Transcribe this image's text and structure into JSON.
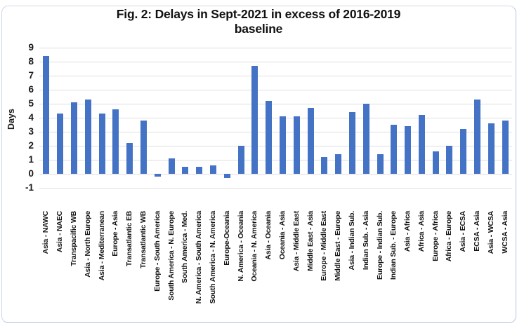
{
  "figure": {
    "title_line1": "Fig. 2: Delays in Sept-2021 in excess of 2016-2019",
    "title_line2": "baseline"
  },
  "colors": {
    "bar": "#4472C4",
    "gridline": "#dfdfdf",
    "text": "#111111",
    "border": "#b4c6e4",
    "background": "#ffffff"
  },
  "chart_data": {
    "type": "bar",
    "title": "Fig. 2: Delays in Sept-2021 in excess of 2016-2019 baseline",
    "xlabel": "",
    "ylabel": "Days",
    "ylim": [
      -1,
      9
    ],
    "ytick_step": 1,
    "yticks": [
      9,
      8,
      7,
      6,
      5,
      4,
      3,
      2,
      1,
      0,
      -1
    ],
    "grid": true,
    "legend": "none",
    "bar_color": "#4472C4",
    "categories": [
      "Asia - NAWC",
      "Asia - NAEC",
      "Transpacific WB",
      "Asia - North Europe",
      "Asia - Mediterranean",
      "Europe - Asia",
      "Transatlantic EB",
      "Transatlantic WB",
      "Europe - South America",
      "South America - N. Europe",
      "South America - Med.",
      "N. America - South America",
      "South America - N. America",
      "Europe-Oceania",
      "N. America - Oceania",
      "Oceania - N. America",
      "Asia - Oceania",
      "Oceania - Asia",
      "Asia - Middle East",
      "Middle East - Asia",
      "Europe - Middle East",
      "Middle East - Europe",
      "Asia - Indian Sub.",
      "Indian Sub. - Asia",
      "Europe - Indian Sub.",
      "Indian Sub. - Europe",
      "Asia - Africa",
      "Africa - Asia",
      "Europe - Africa",
      "Africa - Europe",
      "Asia - ECSA",
      "ECSA - Asia",
      "Asia - WCSA",
      "WCSA - Asia"
    ],
    "values": [
      8.4,
      4.3,
      5.1,
      5.3,
      4.3,
      4.6,
      2.2,
      3.8,
      -0.2,
      1.1,
      0.5,
      0.5,
      0.6,
      -0.3,
      2.0,
      7.7,
      5.2,
      4.1,
      4.1,
      4.7,
      1.2,
      1.4,
      4.4,
      5.0,
      1.4,
      3.5,
      3.4,
      4.2,
      1.6,
      2.0,
      3.2,
      5.3,
      3.6,
      3.8
    ]
  }
}
